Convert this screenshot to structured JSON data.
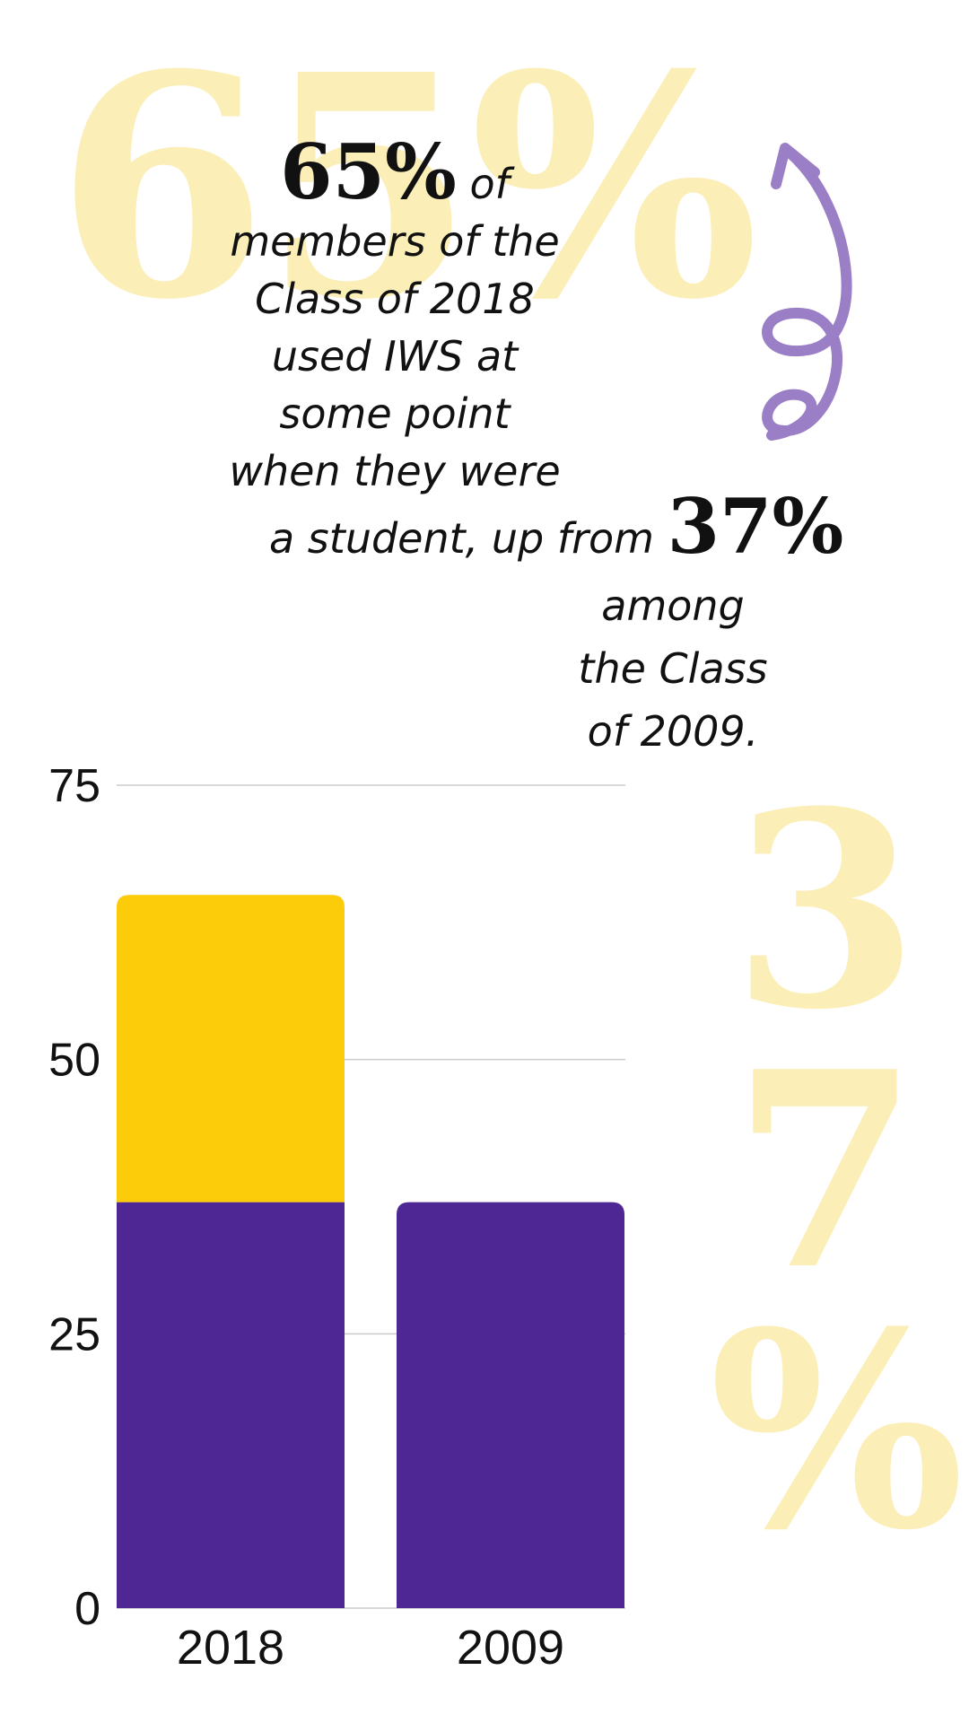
{
  "background": {
    "top_number": "65%",
    "side_number_chars": [
      "3",
      "7",
      "%"
    ]
  },
  "headline": {
    "stat1": "65%",
    "line1_suffix": " of",
    "line2": "members of the",
    "line3": "Class of 2018",
    "line4": "used IWS at",
    "line5": "some point",
    "line6": "when they were",
    "line7_prefix": "a student, up from ",
    "stat2": "37%",
    "line8": "among",
    "line9": "the Class",
    "line10": "of 2009."
  },
  "colors": {
    "purple": "#4f2794",
    "gold": "#fccb0a",
    "pale_gold": "#fbeeb6",
    "squiggle": "#9b7fc6",
    "grid": "#cccccc"
  },
  "chart_data": {
    "type": "bar",
    "categories": [
      "2018",
      "2009"
    ],
    "series": [
      {
        "values": [
          37,
          37
        ],
        "color": "#4f2794"
      },
      {
        "values": [
          28,
          0
        ],
        "color": "#fccb0a"
      }
    ],
    "yticks": [
      "0",
      "25",
      "50",
      "75"
    ],
    "ylim": [
      0,
      75
    ],
    "grid": true,
    "title": "",
    "xlabel": "",
    "ylabel": ""
  }
}
